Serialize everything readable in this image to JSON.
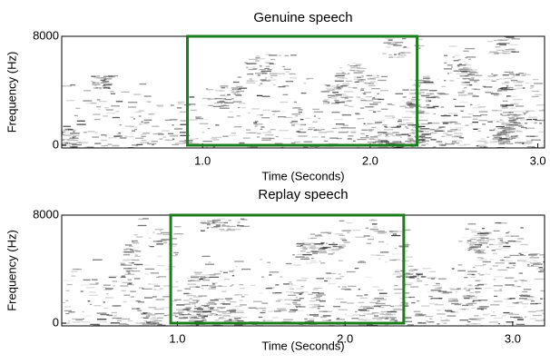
{
  "chart_data": [
    {
      "type": "spectrogram",
      "title": "Genuine speech",
      "x_label": "Time (Seconds)",
      "y_label": "Frequency (Hz)",
      "xlim": [
        0.16,
        3.04
      ],
      "ylim": [
        -200,
        8000
      ],
      "xticks": [
        {
          "value": 1,
          "label": "1.0"
        },
        {
          "value": 2,
          "label": "2.0"
        },
        {
          "value": 3,
          "label": "3.0"
        }
      ],
      "yticks": [
        0,
        8000
      ],
      "highlight": {
        "x": [
          0.91,
          2.28
        ],
        "y": [
          0,
          8000
        ],
        "color": "#1b7d1b"
      }
    },
    {
      "type": "spectrogram",
      "title": "Replay speech",
      "x_label": "Time (Seconds)",
      "y_label": "Frequency (Hz)",
      "xlim": [
        0.31,
        3.19
      ],
      "ylim": [
        -200,
        8000
      ],
      "xticks": [
        {
          "value": 1,
          "label": "1.0"
        },
        {
          "value": 2,
          "label": "2.0"
        },
        {
          "value": 3,
          "label": "3.0"
        }
      ],
      "yticks": [
        0,
        8000
      ],
      "highlight": {
        "x": [
          0.96,
          2.35
        ],
        "y": [
          0,
          8000
        ],
        "color": "#1b7d1b"
      }
    }
  ]
}
